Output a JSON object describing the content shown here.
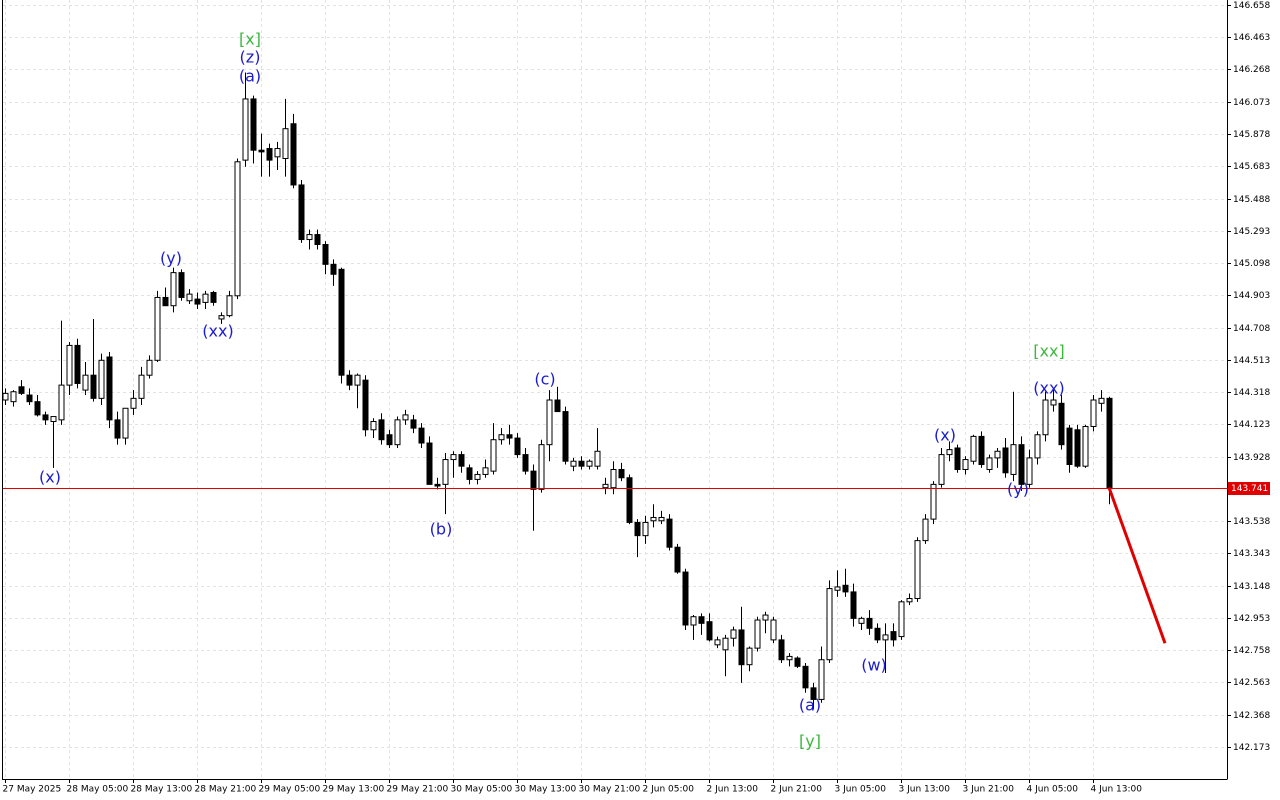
{
  "chart_data": {
    "type": "candlestick",
    "categories": [
      "27 May 2025",
      null,
      null,
      null,
      null,
      null,
      null,
      null,
      "28 May 05:00",
      null,
      null,
      null,
      null,
      null,
      null,
      null,
      "28 May 13:00",
      null,
      null,
      null,
      null,
      null,
      null,
      null,
      "28 May 21:00",
      null,
      null,
      null,
      null,
      null,
      null,
      null,
      "29 May 05:00",
      null,
      null,
      null,
      null,
      null,
      null,
      null,
      "29 May 13:00",
      null,
      null,
      null,
      null,
      null,
      null,
      null,
      "29 May 21:00",
      null,
      null,
      null,
      null,
      null,
      null,
      null,
      "30 May 05:00",
      null,
      null,
      null,
      null,
      null,
      null,
      null,
      "30 May 13:00",
      null,
      null,
      null,
      null,
      null,
      null,
      null,
      "30 May 21:00",
      null,
      null,
      null,
      null,
      null,
      null,
      null,
      "2 Jun 05:00",
      null,
      null,
      null,
      null,
      null,
      null,
      null,
      "2 Jun 13:00",
      null,
      null,
      null,
      null,
      null,
      null,
      null,
      "2 Jun 21:00",
      null,
      null,
      null,
      null,
      null,
      null,
      null,
      "3 Jun 05:00",
      null,
      null,
      null,
      null,
      null,
      null,
      null,
      "3 Jun 13:00",
      null,
      null,
      null,
      null,
      null,
      null,
      null,
      "3 Jun 21:00",
      null,
      null,
      null,
      null,
      null,
      null,
      null,
      "4 Jun 05:00",
      null,
      null,
      null,
      null,
      null,
      null,
      null,
      "4 Jun 13:00",
      null,
      null
    ],
    "open": [
      144.27,
      144.26,
      144.35,
      144.3,
      144.26,
      144.18,
      144.14,
      144.15,
      144.36,
      144.6,
      144.33,
      144.42,
      144.28,
      144.53,
      144.15,
      144.04,
      144.22,
      144.28,
      144.42,
      144.51,
      144.89,
      144.84,
      145.04,
      144.87,
      144.88,
      144.86,
      144.92,
      144.76,
      144.78,
      144.9,
      145.72,
      146.09,
      145.78,
      145.79,
      145.74,
      145.73,
      145.94,
      145.57,
      145.24,
      145.27,
      145.21,
      145.09,
      145.06,
      144.42,
      144.36,
      144.39,
      144.09,
      144.15,
      144.06,
      144.0,
      144.15,
      144.15,
      144.1,
      144.01,
      143.76,
      143.76,
      143.91,
      143.94,
      143.86,
      143.79,
      143.82,
      143.84,
      144.03,
      144.06,
      144.04,
      143.94,
      143.84,
      143.73,
      144.0,
      144.27,
      144.2,
      143.87,
      143.9,
      143.87,
      143.87,
      143.74,
      143.74,
      143.85,
      143.8,
      143.53,
      143.45,
      143.54,
      143.54,
      143.55,
      143.38,
      143.23,
      142.91,
      142.96,
      142.93,
      142.79,
      142.76,
      142.83,
      142.88,
      142.67,
      142.77,
      142.94,
      142.82,
      142.82,
      142.7,
      142.71,
      142.66,
      142.53,
      142.46,
      142.7,
      143.12,
      143.15,
      143.11,
      142.92,
      142.95,
      142.89,
      142.82,
      142.87,
      142.84,
      143.05,
      143.07,
      143.42,
      143.55,
      143.76,
      143.94,
      143.98,
      143.85,
      143.9,
      144.05,
      143.85,
      143.92,
      143.98,
      143.82,
      144.0,
      143.76,
      143.92,
      144.06,
      144.24,
      144.25,
      144.1,
      144.09,
      143.87,
      144.11,
      144.25,
      144.28
    ],
    "high": [
      144.34,
      144.33,
      144.39,
      144.34,
      144.3,
      144.2,
      144.17,
      144.75,
      144.62,
      144.64,
      144.5,
      144.76,
      144.55,
      144.56,
      144.2,
      144.22,
      144.33,
      144.47,
      144.54,
      144.93,
      144.95,
      145.07,
      145.06,
      144.94,
      144.92,
      144.93,
      144.93,
      144.8,
      144.93,
      145.73,
      146.25,
      146.11,
      145.88,
      145.82,
      145.83,
      146.09,
      146.0,
      145.6,
      145.3,
      145.3,
      145.23,
      145.12,
      145.07,
      144.45,
      144.43,
      144.42,
      144.16,
      144.19,
      144.09,
      144.17,
      144.21,
      144.18,
      144.13,
      144.05,
      143.8,
      143.95,
      143.96,
      143.96,
      143.88,
      143.84,
      143.91,
      144.13,
      144.1,
      144.12,
      144.07,
      143.98,
      143.88,
      144.03,
      144.33,
      144.35,
      144.23,
      143.92,
      143.93,
      143.91,
      144.1,
      143.8,
      143.9,
      143.89,
      143.82,
      143.55,
      143.57,
      143.64,
      143.6,
      143.58,
      143.4,
      143.25,
      142.97,
      142.98,
      142.98,
      142.84,
      142.85,
      142.9,
      143.02,
      142.78,
      142.96,
      142.99,
      142.96,
      142.85,
      142.74,
      142.72,
      142.68,
      142.56,
      142.78,
      143.18,
      143.24,
      143.25,
      143.16,
      142.96,
      143.0,
      142.92,
      142.92,
      142.92,
      143.06,
      143.1,
      143.44,
      143.58,
      143.78,
      143.98,
      144.02,
      144.0,
      143.93,
      144.06,
      144.08,
      143.94,
      143.98,
      144.04,
      144.32,
      144.05,
      143.97,
      144.08,
      144.32,
      144.34,
      144.3,
      144.12,
      144.12,
      144.12,
      144.3,
      144.33,
      144.29
    ],
    "low": [
      144.24,
      144.23,
      144.3,
      144.24,
      144.17,
      144.12,
      143.86,
      144.12,
      144.3,
      144.34,
      144.3,
      144.26,
      144.24,
      144.1,
      144.0,
      144.0,
      144.18,
      144.24,
      144.4,
      144.5,
      144.84,
      144.8,
      144.87,
      144.85,
      144.82,
      144.82,
      144.84,
      144.73,
      144.77,
      144.88,
      145.68,
      145.7,
      145.62,
      145.62,
      145.66,
      145.62,
      145.55,
      145.22,
      145.18,
      145.18,
      145.03,
      144.96,
      144.37,
      144.33,
      144.22,
      144.05,
      144.04,
      144.0,
      143.98,
      143.98,
      144.12,
      144.07,
      143.98,
      143.76,
      143.73,
      143.58,
      143.8,
      143.83,
      143.76,
      143.76,
      143.8,
      143.82,
      144.0,
      144.0,
      143.92,
      143.82,
      143.48,
      143.71,
      143.9,
      144.2,
      143.88,
      143.84,
      143.85,
      143.85,
      143.85,
      143.7,
      143.7,
      143.78,
      143.52,
      143.32,
      143.4,
      143.5,
      143.52,
      143.36,
      143.22,
      142.88,
      142.82,
      142.85,
      142.81,
      142.77,
      142.6,
      142.78,
      142.56,
      142.63,
      142.75,
      142.86,
      142.8,
      142.68,
      142.66,
      142.65,
      142.5,
      142.4,
      142.44,
      142.68,
      143.08,
      143.08,
      142.9,
      142.88,
      142.85,
      142.8,
      142.62,
      142.78,
      142.82,
      143.03,
      143.05,
      143.4,
      143.52,
      143.74,
      143.9,
      143.83,
      143.82,
      143.88,
      143.86,
      143.83,
      143.86,
      143.8,
      143.78,
      143.72,
      143.74,
      143.88,
      144.02,
      144.2,
      143.97,
      143.83,
      143.86,
      143.86,
      144.08,
      144.2,
      143.64
    ],
    "close": [
      144.31,
      144.32,
      144.31,
      144.26,
      144.18,
      144.15,
      144.17,
      144.36,
      144.6,
      144.37,
      144.42,
      144.28,
      144.51,
      144.15,
      144.04,
      144.22,
      144.28,
      144.42,
      144.51,
      144.89,
      144.84,
      145.04,
      144.89,
      144.91,
      144.85,
      144.91,
      144.86,
      144.78,
      144.9,
      145.71,
      146.09,
      145.78,
      145.77,
      145.72,
      145.79,
      145.91,
      145.57,
      145.24,
      145.27,
      145.21,
      145.09,
      145.03,
      144.42,
      144.36,
      144.42,
      144.09,
      144.14,
      144.03,
      144.0,
      144.15,
      144.18,
      144.1,
      144.01,
      143.76,
      143.75,
      143.91,
      143.94,
      143.87,
      143.79,
      143.82,
      143.86,
      144.03,
      144.06,
      144.04,
      143.94,
      143.84,
      143.73,
      144.0,
      144.27,
      144.2,
      143.9,
      143.9,
      143.87,
      143.9,
      143.96,
      143.76,
      143.85,
      143.8,
      143.53,
      143.45,
      143.53,
      143.56,
      143.56,
      143.38,
      143.23,
      142.91,
      142.96,
      142.92,
      142.82,
      142.82,
      142.83,
      142.88,
      142.67,
      142.77,
      142.94,
      142.97,
      142.94,
      142.7,
      142.72,
      142.66,
      142.53,
      142.46,
      142.7,
      143.13,
      143.14,
      143.11,
      142.95,
      142.95,
      142.89,
      142.82,
      142.85,
      142.82,
      143.05,
      143.07,
      143.42,
      143.55,
      143.76,
      143.94,
      143.97,
      143.85,
      143.91,
      144.05,
      143.88,
      143.92,
      143.96,
      143.83,
      144.0,
      143.76,
      143.92,
      144.06,
      144.27,
      144.27,
      144.0,
      143.88,
      143.87,
      144.11,
      144.27,
      144.28,
      143.741
    ],
    "up_color": "#ffffff",
    "down_color": "#000000",
    "ylim": [
      141.979,
      146.688
    ],
    "yticks": [
      146.658,
      146.463,
      146.268,
      146.073,
      145.878,
      145.683,
      145.488,
      145.293,
      145.098,
      144.903,
      144.708,
      144.513,
      144.318,
      144.123,
      143.928,
      143.538,
      143.343,
      143.148,
      142.953,
      142.758,
      142.563,
      142.368,
      142.173
    ],
    "grid": true,
    "current_price": 143.741,
    "current_price_color": "#e00000",
    "forecast": {
      "color": "#e00000",
      "to": 142.8
    },
    "annotations": [
      {
        "text": "[x]",
        "color": "#3cb83c"
      },
      {
        "text": "(z)",
        "color": "#1c1cd0"
      },
      {
        "text": "(a)",
        "color": "#1c1cd0"
      },
      {
        "text": "(y)",
        "color": "#1c1cd0"
      },
      {
        "text": "(xx)",
        "color": "#1c1cd0"
      },
      {
        "text": "(x)",
        "color": "#1c1cd0"
      },
      {
        "text": "(c)",
        "color": "#1c1cd0"
      },
      {
        "text": "(b)",
        "color": "#1c1cd0"
      },
      {
        "text": "(a)",
        "color": "#1c1cd0"
      },
      {
        "text": "[y]",
        "color": "#3cb83c"
      },
      {
        "text": "(w)",
        "color": "#1c1cd0"
      },
      {
        "text": "(x)",
        "color": "#1c1cd0"
      },
      {
        "text": "(y)",
        "color": "#1c1cd0"
      },
      {
        "text": "(xx)",
        "color": "#1c1cd0"
      },
      {
        "text": "[xx]",
        "color": "#3cb83c"
      }
    ]
  }
}
